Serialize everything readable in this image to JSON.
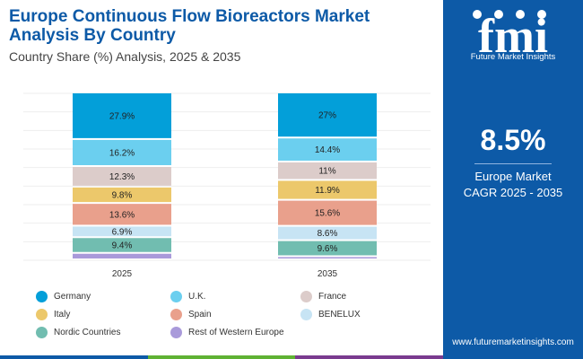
{
  "header": {
    "title": "Europe Continuous Flow Bioreactors Market Analysis By Country",
    "subtitle": "Country Share (%) Analysis, 2025 & 2035"
  },
  "sidebar": {
    "logo_letters": "fmi",
    "logo_text": "Future Market Insights",
    "cagr_value": "8.5%",
    "cagr_label_line1": "Europe Market",
    "cagr_label_line2": "CAGR 2025 - 2035",
    "website": "www.futuremarketinsights.com"
  },
  "colors": {
    "brand": "#0d5aa7",
    "bottom_bar": [
      "#0d5aa7",
      "#5fb233",
      "#7a3b8f"
    ]
  },
  "chart_data": {
    "type": "bar",
    "stacked": true,
    "percent_stacked": true,
    "categories": [
      "2025",
      "2035"
    ],
    "series": [
      {
        "name": "Germany",
        "color": "#039fd9",
        "values": [
          27.9,
          27
        ],
        "labels": [
          "27.9%",
          "27%"
        ]
      },
      {
        "name": "U.K.",
        "color": "#6bcfef",
        "values": [
          16.2,
          14.4
        ],
        "labels": [
          "16.2%",
          "14.4%"
        ]
      },
      {
        "name": "France",
        "color": "#dcccca",
        "values": [
          12.3,
          11
        ],
        "labels": [
          "12.3%",
          "11%"
        ]
      },
      {
        "name": "Italy",
        "color": "#ecc86b",
        "values": [
          9.8,
          11.9
        ],
        "labels": [
          "9.8%",
          "11.9%"
        ]
      },
      {
        "name": "Spain",
        "color": "#e9a08c",
        "values": [
          13.6,
          15.6
        ],
        "labels": [
          "13.6%",
          "15.6%"
        ]
      },
      {
        "name": "BENELUX",
        "color": "#c7e4f4",
        "values": [
          6.9,
          8.6
        ],
        "labels": [
          "6.9%",
          "8.6%"
        ]
      },
      {
        "name": "Nordic Countries",
        "color": "#71bdb0",
        "values": [
          9.4,
          9.6
        ],
        "labels": [
          "9.4%",
          "9.6%"
        ]
      },
      {
        "name": "Rest of Western Europe",
        "color": "#a99ada",
        "values": [
          3.9,
          1.9
        ],
        "labels": [
          "",
          ""
        ]
      }
    ],
    "grid": true,
    "legend_position": "bottom"
  }
}
